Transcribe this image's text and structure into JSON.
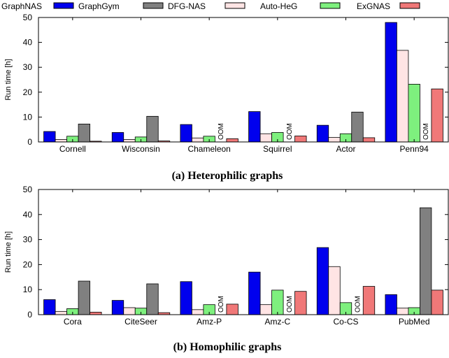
{
  "legend": {
    "entries": [
      "GraphNAS",
      "GraphGym",
      "DFG-NAS",
      "Auto-HeG",
      "ExGNAS"
    ]
  },
  "colors": {
    "GraphNAS": "#0000ee",
    "DFG-NAS": "#ffe4e4",
    "Auto-HeG": "#7ef07e",
    "GraphGym": "#808080",
    "ExGNAS": "#f07878"
  },
  "oom_label": "OOM",
  "chart_data": [
    {
      "type": "bar",
      "title": "(a) Heterophilic graphs",
      "xlabel": "",
      "ylabel": "Run time [h]",
      "ylim": [
        0,
        50
      ],
      "yticks": [
        0,
        10,
        20,
        30,
        40,
        50
      ],
      "grid": false,
      "categories": [
        "Cornell",
        "Wisconsin",
        "Chameleon",
        "Squirrel",
        "Actor",
        "Penn94"
      ],
      "series": [
        {
          "name": "GraphNAS",
          "values": [
            4.2,
            3.8,
            7.0,
            12.2,
            6.7,
            48.0
          ]
        },
        {
          "name": "DFG-NAS",
          "values": [
            1.0,
            1.0,
            1.6,
            3.3,
            1.8,
            36.8
          ]
        },
        {
          "name": "Auto-HeG",
          "values": [
            2.3,
            2.0,
            2.3,
            3.8,
            3.3,
            23.2
          ]
        },
        {
          "name": "GraphGym",
          "values": [
            7.2,
            10.3,
            null,
            null,
            12.0,
            null
          ]
        },
        {
          "name": "ExGNAS",
          "values": [
            0.3,
            0.4,
            1.3,
            2.4,
            1.7,
            21.3
          ]
        }
      ],
      "oom": [
        {
          "series": "GraphGym",
          "category": "Chameleon"
        },
        {
          "series": "GraphGym",
          "category": "Squirrel"
        },
        {
          "series": "GraphGym",
          "category": "Penn94"
        }
      ]
    },
    {
      "type": "bar",
      "title": "(b) Homophilic graphs",
      "xlabel": "",
      "ylabel": "Run time [h]",
      "ylim": [
        0,
        50
      ],
      "yticks": [
        0,
        10,
        20,
        30,
        40,
        50
      ],
      "grid": false,
      "categories": [
        "Cora",
        "CiteSeer",
        "Amz-P",
        "Amz-C",
        "Co-CS",
        "PubMed"
      ],
      "series": [
        {
          "name": "GraphNAS",
          "values": [
            6.0,
            5.7,
            13.2,
            17.0,
            26.8,
            8.0
          ]
        },
        {
          "name": "DFG-NAS",
          "values": [
            1.3,
            2.8,
            2.0,
            4.0,
            19.2,
            2.6
          ]
        },
        {
          "name": "Auto-HeG",
          "values": [
            2.4,
            2.6,
            4.0,
            9.8,
            4.8,
            2.8
          ]
        },
        {
          "name": "GraphGym",
          "values": [
            13.4,
            12.3,
            null,
            null,
            null,
            42.7
          ]
        },
        {
          "name": "ExGNAS",
          "values": [
            1.0,
            0.8,
            4.2,
            9.3,
            11.3,
            9.8
          ]
        }
      ],
      "oom": [
        {
          "series": "GraphGym",
          "category": "Amz-P"
        },
        {
          "series": "GraphGym",
          "category": "Amz-C"
        },
        {
          "series": "GraphGym",
          "category": "Co-CS"
        }
      ]
    }
  ]
}
